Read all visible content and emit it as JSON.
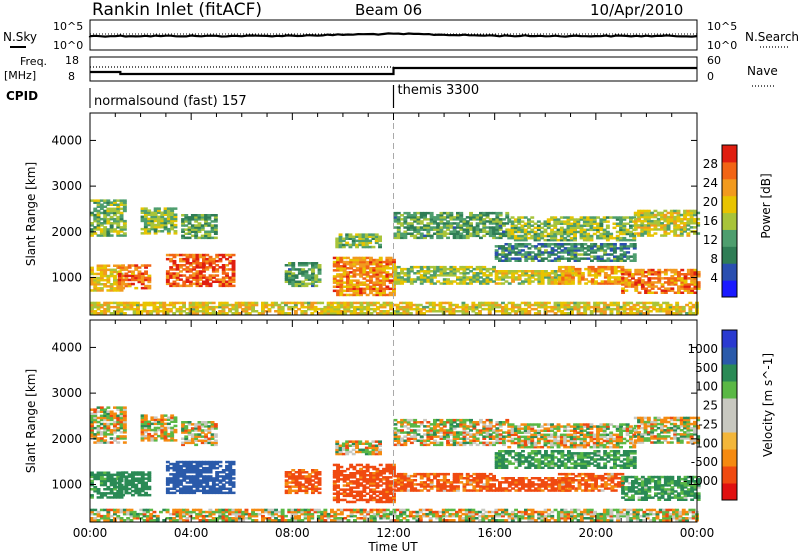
{
  "header": {
    "station": "Rankin Inlet (fitACF)",
    "beam": "Beam 06",
    "date": "10/Apr/2010"
  },
  "nsky_panel": {
    "left_label": "N.Sky",
    "left_ticks": [
      "10^5",
      "10^0"
    ],
    "right_label": "N.Search",
    "right_ticks": [
      "10^5",
      "10^0"
    ]
  },
  "freq_panel": {
    "left_label_1": "Freq.",
    "left_label_2": "[MHz]",
    "left_ticks": [
      "18",
      "8"
    ],
    "right_label": "Nave",
    "right_ticks": [
      "60",
      "0"
    ]
  },
  "cpid": {
    "label": "CPID",
    "programs": [
      {
        "name": "normalsound (fast) 157",
        "start_hour": 0
      },
      {
        "name": "themis 3300",
        "start_hour": 12
      }
    ]
  },
  "colors": {
    "power": [
      "#1a1aff",
      "#2a4fb0",
      "#2f7d55",
      "#4e9e6e",
      "#a8c43a",
      "#e8c400",
      "#f29a1e",
      "#f26414",
      "#e01e10"
    ],
    "velocity": [
      "#e01010",
      "#f04a10",
      "#f58a10",
      "#f3b63a",
      "#c8c8c0",
      "#c8c8c0",
      "#5ab845",
      "#2a8a55",
      "#2a5aaa",
      "#2a3ad0"
    ]
  },
  "chart_data": [
    {
      "type": "heatmap",
      "title": "",
      "ylabel": "Slant Range [km]",
      "xlabel": "",
      "x_unit": "hour UT",
      "xlim": [
        0,
        24
      ],
      "ylim": [
        180,
        4600
      ],
      "yticks": [
        "1000",
        "2000",
        "3000",
        "4000"
      ],
      "colorbar": {
        "label": "Power [dB]",
        "ticks": [
          "4",
          "8",
          "12",
          "16",
          "20",
          "24",
          "28"
        ],
        "range": [
          0,
          32
        ]
      },
      "echo_regions": [
        {
          "t": [
            0.0,
            1.2
          ],
          "r": [
            700,
            1250
          ],
          "v": 20
        },
        {
          "t": [
            0.0,
            1.3
          ],
          "r": [
            1900,
            2700
          ],
          "v": 14
        },
        {
          "t": [
            1.1,
            2.3
          ],
          "r": [
            750,
            1250
          ],
          "v": 26
        },
        {
          "t": [
            2.0,
            3.3
          ],
          "r": [
            1950,
            2500
          ],
          "v": 15
        },
        {
          "t": [
            3.0,
            5.6
          ],
          "r": [
            800,
            1500
          ],
          "v": 27
        },
        {
          "t": [
            3.6,
            5.0
          ],
          "r": [
            1850,
            2350
          ],
          "v": 12
        },
        {
          "t": [
            7.7,
            9.1
          ],
          "r": [
            800,
            1300
          ],
          "v": 12
        },
        {
          "t": [
            9.6,
            12.0
          ],
          "r": [
            600,
            1450
          ],
          "v": 24
        },
        {
          "t": [
            9.7,
            11.5
          ],
          "r": [
            1650,
            1950
          ],
          "v": 15
        },
        {
          "t": [
            12.0,
            16.0
          ],
          "r": [
            850,
            1250
          ],
          "v": 16
        },
        {
          "t": [
            16.0,
            19.0
          ],
          "r": [
            850,
            1150
          ],
          "v": 18
        },
        {
          "t": [
            18.5,
            21.0
          ],
          "r": [
            850,
            1250
          ],
          "v": 23
        },
        {
          "t": [
            21.0,
            24.0
          ],
          "r": [
            650,
            1150
          ],
          "v": 25
        },
        {
          "t": [
            12.0,
            16.5
          ],
          "r": [
            1850,
            2400
          ],
          "v": 12
        },
        {
          "t": [
            16.5,
            21.5
          ],
          "r": [
            1800,
            2300
          ],
          "v": 15
        },
        {
          "t": [
            21.5,
            24.0
          ],
          "r": [
            1900,
            2450
          ],
          "v": 18
        },
        {
          "t": [
            16.0,
            21.5
          ],
          "r": [
            1350,
            1750
          ],
          "v": 10
        },
        {
          "t": [
            0.0,
            24.0
          ],
          "r": [
            200,
            450
          ],
          "v": 19
        }
      ]
    },
    {
      "type": "heatmap",
      "title": "",
      "ylabel": "Slant Range [km]",
      "xlabel": "Time UT",
      "x_unit": "hour UT",
      "xlim": [
        0,
        24
      ],
      "ylim": [
        180,
        4600
      ],
      "xticks": [
        "00:00",
        "04:00",
        "08:00",
        "12:00",
        "16:00",
        "20:00",
        "00:00"
      ],
      "yticks": [
        "1000",
        "2000",
        "3000",
        "4000"
      ],
      "colorbar": {
        "label": "Velocity [m s^-1]",
        "ticks": [
          "1000",
          "500",
          "100",
          "25",
          "-25",
          "-100",
          "-500",
          "-1000"
        ],
        "range": [
          -1000,
          1000
        ]
      },
      "echo_regions": [
        {
          "t": [
            0.0,
            1.2
          ],
          "r": [
            700,
            1250
          ],
          "v": 200
        },
        {
          "t": [
            0.0,
            1.3
          ],
          "r": [
            1900,
            2700
          ],
          "v": 0
        },
        {
          "t": [
            1.1,
            2.3
          ],
          "r": [
            750,
            1250
          ],
          "v": 300
        },
        {
          "t": [
            2.0,
            3.3
          ],
          "r": [
            1950,
            2500
          ],
          "v": 0
        },
        {
          "t": [
            3.0,
            5.6
          ],
          "r": [
            800,
            1500
          ],
          "v": 700
        },
        {
          "t": [
            3.6,
            5.0
          ],
          "r": [
            1850,
            2350
          ],
          "v": 0
        },
        {
          "t": [
            7.7,
            9.1
          ],
          "r": [
            800,
            1300
          ],
          "v": -150
        },
        {
          "t": [
            9.6,
            12.0
          ],
          "r": [
            600,
            1450
          ],
          "v": -200
        },
        {
          "t": [
            9.7,
            11.5
          ],
          "r": [
            1650,
            1950
          ],
          "v": 0
        },
        {
          "t": [
            12.0,
            16.0
          ],
          "r": [
            850,
            1250
          ],
          "v": -150
        },
        {
          "t": [
            16.0,
            19.0
          ],
          "r": [
            850,
            1150
          ],
          "v": -200
        },
        {
          "t": [
            18.5,
            21.0
          ],
          "r": [
            850,
            1250
          ],
          "v": -150
        },
        {
          "t": [
            21.0,
            24.0
          ],
          "r": [
            650,
            1150
          ],
          "v": 150
        },
        {
          "t": [
            12.0,
            16.5
          ],
          "r": [
            1850,
            2400
          ],
          "v": 0
        },
        {
          "t": [
            16.5,
            21.5
          ],
          "r": [
            1800,
            2300
          ],
          "v": 0
        },
        {
          "t": [
            21.5,
            24.0
          ],
          "r": [
            1900,
            2450
          ],
          "v": 0
        },
        {
          "t": [
            16.0,
            21.5
          ],
          "r": [
            1350,
            1750
          ],
          "v": 150
        },
        {
          "t": [
            0.0,
            24.0
          ],
          "r": [
            200,
            450
          ],
          "v": 0
        }
      ]
    }
  ]
}
